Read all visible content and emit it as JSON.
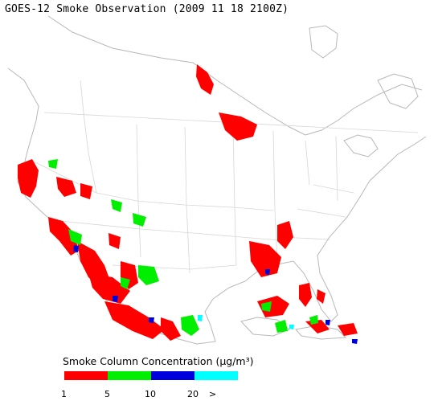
{
  "title": "GOES-12 Smoke Observation (2009 11 18  2100Z)",
  "legend": {
    "title": "Smoke Column Concentration (μg/m³)",
    "bins": [
      {
        "color": "#ff0000",
        "label": "1"
      },
      {
        "color": "#00ee00",
        "label": "5"
      },
      {
        "color": "#0000dd",
        "label": "10"
      },
      {
        "color": "#00ffff",
        "label": "20"
      }
    ],
    "end_label": ">"
  }
}
